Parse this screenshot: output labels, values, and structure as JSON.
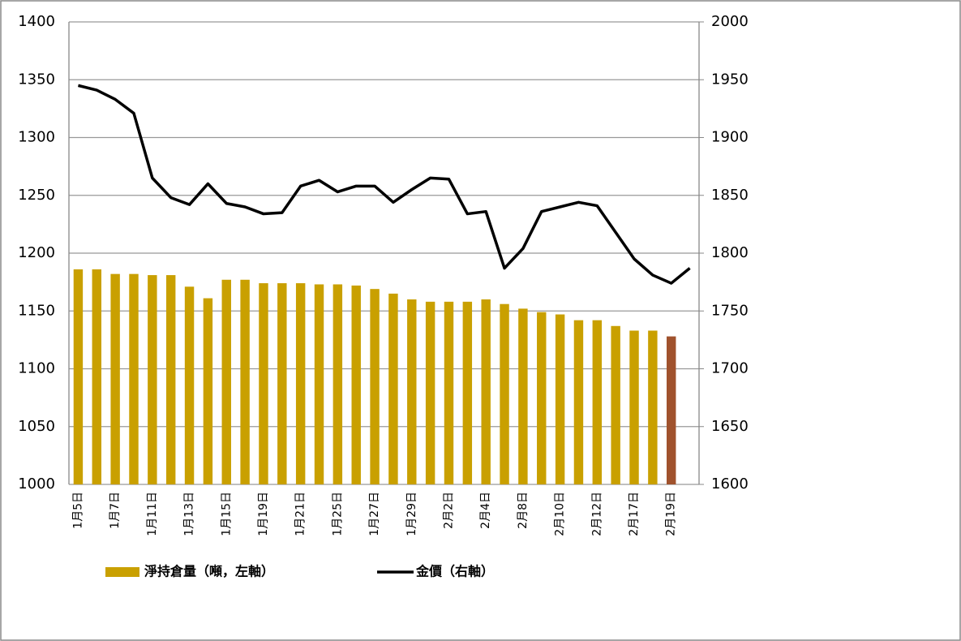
{
  "chart_data": {
    "type": "bar+line",
    "categories": [
      "1月5日",
      null,
      "1月7日",
      null,
      "1月11日",
      null,
      "1月13日",
      null,
      "1月15日",
      null,
      "1月19日",
      null,
      "1月21日",
      null,
      "1月25日",
      null,
      "1月27日",
      null,
      "1月29日",
      null,
      "2月2日",
      null,
      "2月4日",
      null,
      "2月8日",
      null,
      "2月10日",
      null,
      "2月12日",
      null,
      "2月17日",
      null,
      "2月19日",
      null
    ],
    "series": [
      {
        "name": "淨持倉量（噸，左軸）",
        "type": "bar",
        "axis": "y",
        "color": "#c9a000",
        "colors": [
          "#c9a000",
          "#c9a000",
          "#c9a000",
          "#c9a000",
          "#c9a000",
          "#c9a000",
          "#c9a000",
          "#c9a000",
          "#c9a000",
          "#c9a000",
          "#c9a000",
          "#c9a000",
          "#c9a000",
          "#c9a000",
          "#c9a000",
          "#c9a000",
          "#c9a000",
          "#c9a000",
          "#c9a000",
          "#c9a000",
          "#c9a000",
          "#c9a000",
          "#c9a000",
          "#c9a000",
          "#c9a000",
          "#c9a000",
          "#c9a000",
          "#c9a000",
          "#c9a000",
          "#c9a000",
          "#c9a000",
          "#c9a000",
          "#a0522d",
          null
        ],
        "values": [
          1186,
          1186,
          1182,
          1182,
          1181,
          1181,
          1171,
          1161,
          1177,
          1177,
          1174,
          1174,
          1174,
          1173,
          1173,
          1172,
          1169,
          1165,
          1160,
          1158,
          1158,
          1158,
          1160,
          1156,
          1152,
          1149,
          1147,
          1142,
          1142,
          1137,
          1133,
          1133,
          1128,
          null
        ]
      },
      {
        "name": "金價（右軸）",
        "type": "line",
        "axis": "y2",
        "color": "#000000",
        "values": [
          1945,
          1941,
          1933,
          1921,
          1865,
          1848,
          1842,
          1860,
          1843,
          1840,
          1834,
          1835,
          1858,
          1863,
          1853,
          1858,
          1858,
          1844,
          1855,
          1865,
          1864,
          1834,
          1836,
          1787,
          1804,
          1836,
          1840,
          1844,
          1841,
          1818,
          1795,
          1781,
          1774,
          1787
        ]
      }
    ],
    "ylim": [
      1000,
      1400
    ],
    "yticks": [
      1000,
      1050,
      1100,
      1150,
      1200,
      1250,
      1300,
      1350,
      1400
    ],
    "y2lim": [
      1600,
      2000
    ],
    "y2ticks": [
      1600,
      1650,
      1700,
      1750,
      1800,
      1850,
      1900,
      1950,
      2000
    ],
    "grid": true,
    "legend": "bottom"
  }
}
